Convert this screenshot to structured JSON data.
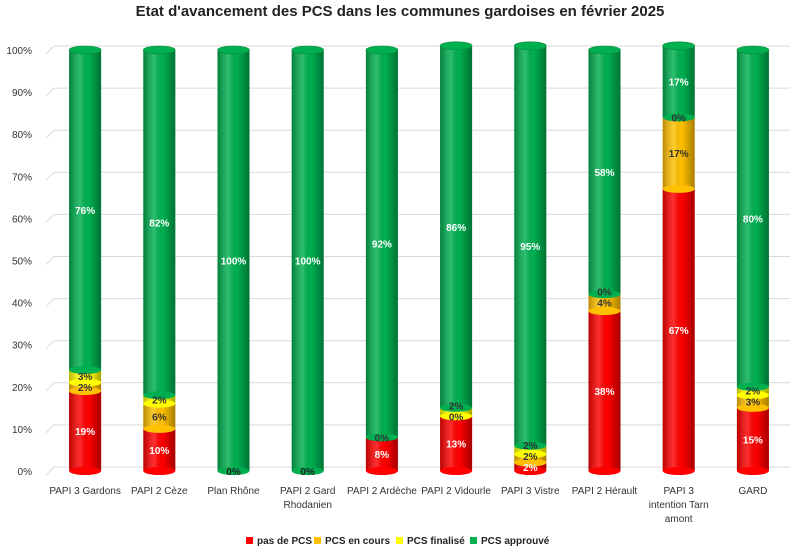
{
  "chart_data": {
    "type": "bar",
    "stacked": true,
    "title": "Etat d'avancement des PCS dans les communes gardoises en février 2025",
    "xlabel": "",
    "ylabel": "",
    "ylim": [
      0,
      100
    ],
    "yticks": [
      "0%",
      "10%",
      "20%",
      "30%",
      "40%",
      "50%",
      "60%",
      "70%",
      "80%",
      "90%",
      "100%"
    ],
    "categories": [
      [
        "PAPI 3 Gardons"
      ],
      [
        "PAPI 2 Cèze"
      ],
      [
        "Plan Rhône"
      ],
      [
        "PAPI 2 Gard",
        "Rhodanien"
      ],
      [
        "PAPI 2 Ardèche"
      ],
      [
        "PAPI 2 Vidourle"
      ],
      [
        "PAPI 3 Vistre"
      ],
      [
        "PAPI 2 Hérault"
      ],
      [
        "PAPI 3",
        "intention Tarn",
        "amont"
      ],
      [
        "GARD"
      ]
    ],
    "series": [
      {
        "name": "pas de PCS",
        "color": "#ff0000",
        "values": [
          19,
          10,
          0,
          0,
          8,
          13,
          2,
          38,
          67,
          15
        ],
        "labels": [
          "19%",
          "10%",
          "0%",
          "0%",
          "8%",
          "13%",
          "2%",
          "38%",
          "67%",
          "15%"
        ]
      },
      {
        "name": "PCS en cours",
        "color": "#ffc000",
        "values": [
          2,
          6,
          0,
          0,
          0,
          0,
          2,
          4,
          17,
          3
        ],
        "labels": [
          "2%",
          "6%",
          "",
          "",
          "0%",
          "0%",
          "2%",
          "4%",
          "17%",
          "3%"
        ]
      },
      {
        "name": "PCS finalisé",
        "color": "#ffff00",
        "values": [
          3,
          2,
          0,
          0,
          0,
          2,
          2,
          0,
          0,
          2
        ],
        "labels": [
          "3%",
          "2%",
          "",
          "",
          "",
          "2%",
          "2%",
          "0%",
          "0%",
          "2%"
        ]
      },
      {
        "name": "PCS approuvé",
        "color": "#00b050",
        "values": [
          76,
          82,
          100,
          100,
          92,
          86,
          95,
          58,
          17,
          80
        ],
        "labels": [
          "76%",
          "82%",
          "100%",
          "100%",
          "92%",
          "86%",
          "95%",
          "58%",
          "17%",
          "80%"
        ]
      }
    ],
    "grid": true,
    "legend": "bottom"
  }
}
